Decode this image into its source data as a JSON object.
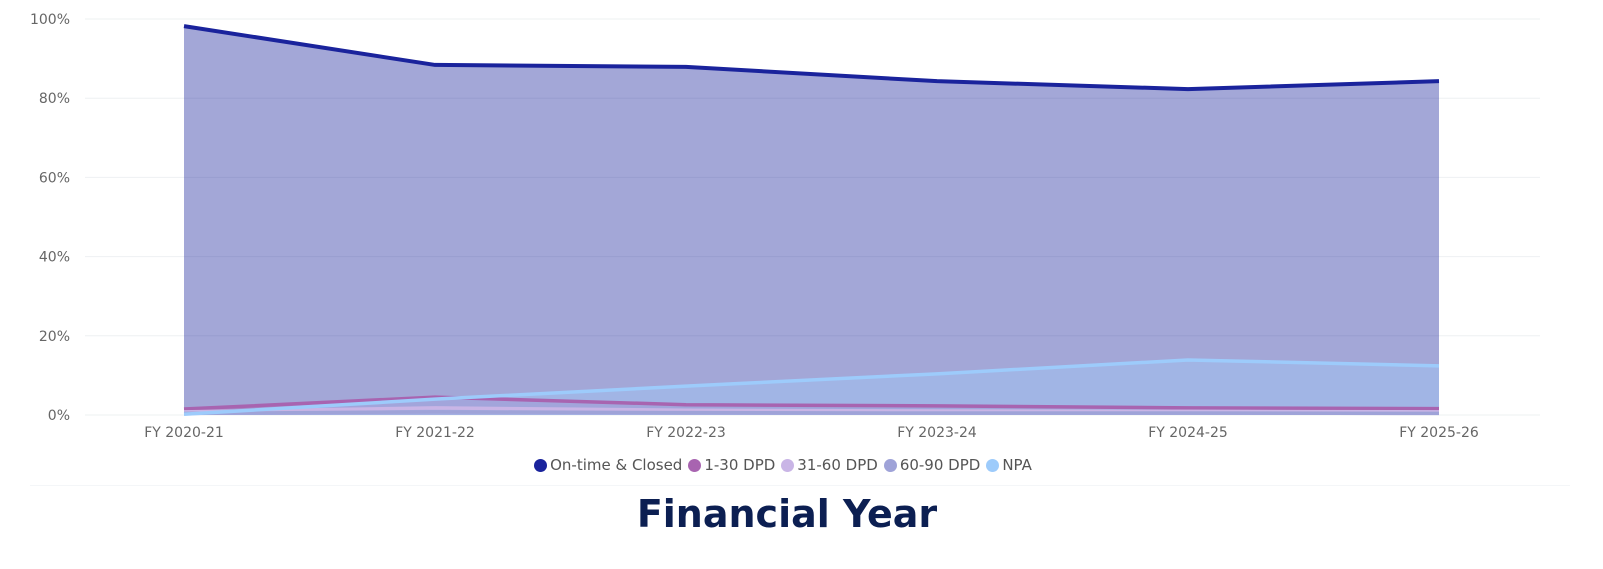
{
  "chart_data": {
    "type": "area",
    "title": "",
    "xlabel": "Financial Year",
    "ylabel": "",
    "ylim": [
      0,
      100
    ],
    "yticks": [
      "0%",
      "20%",
      "40%",
      "60%",
      "80%",
      "100%"
    ],
    "ytick_values": [
      0,
      20,
      40,
      60,
      80,
      100
    ],
    "grid": true,
    "legend_position": "bottom-center",
    "categories": [
      "FY 2020-21",
      "FY 2021-22",
      "FY 2022-23",
      "FY 2023-24",
      "FY 2024-25",
      "FY 2025-26"
    ],
    "series": [
      {
        "name": "On-time & Closed",
        "color": "#1a239c",
        "values": [
          98.2,
          88.4,
          87.9,
          84.3,
          82.3,
          84.3
        ]
      },
      {
        "name": "1-30 DPD",
        "color": "#a864b0",
        "values": [
          1.5,
          4.5,
          2.6,
          2.3,
          1.8,
          1.6
        ]
      },
      {
        "name": "31-60 DPD",
        "color": "#c9b5e6",
        "values": [
          0.8,
          1.8,
          1.2,
          1.0,
          0.9,
          0.8
        ]
      },
      {
        "name": "60-90 DPD",
        "color": "#9fa3d8",
        "values": [
          0.4,
          0.8,
          0.6,
          0.5,
          0.5,
          0.4
        ]
      },
      {
        "name": "NPA",
        "color": "#9dcbfb",
        "values": [
          0.2,
          4.0,
          7.3,
          10.4,
          13.9,
          12.4
        ]
      }
    ]
  }
}
